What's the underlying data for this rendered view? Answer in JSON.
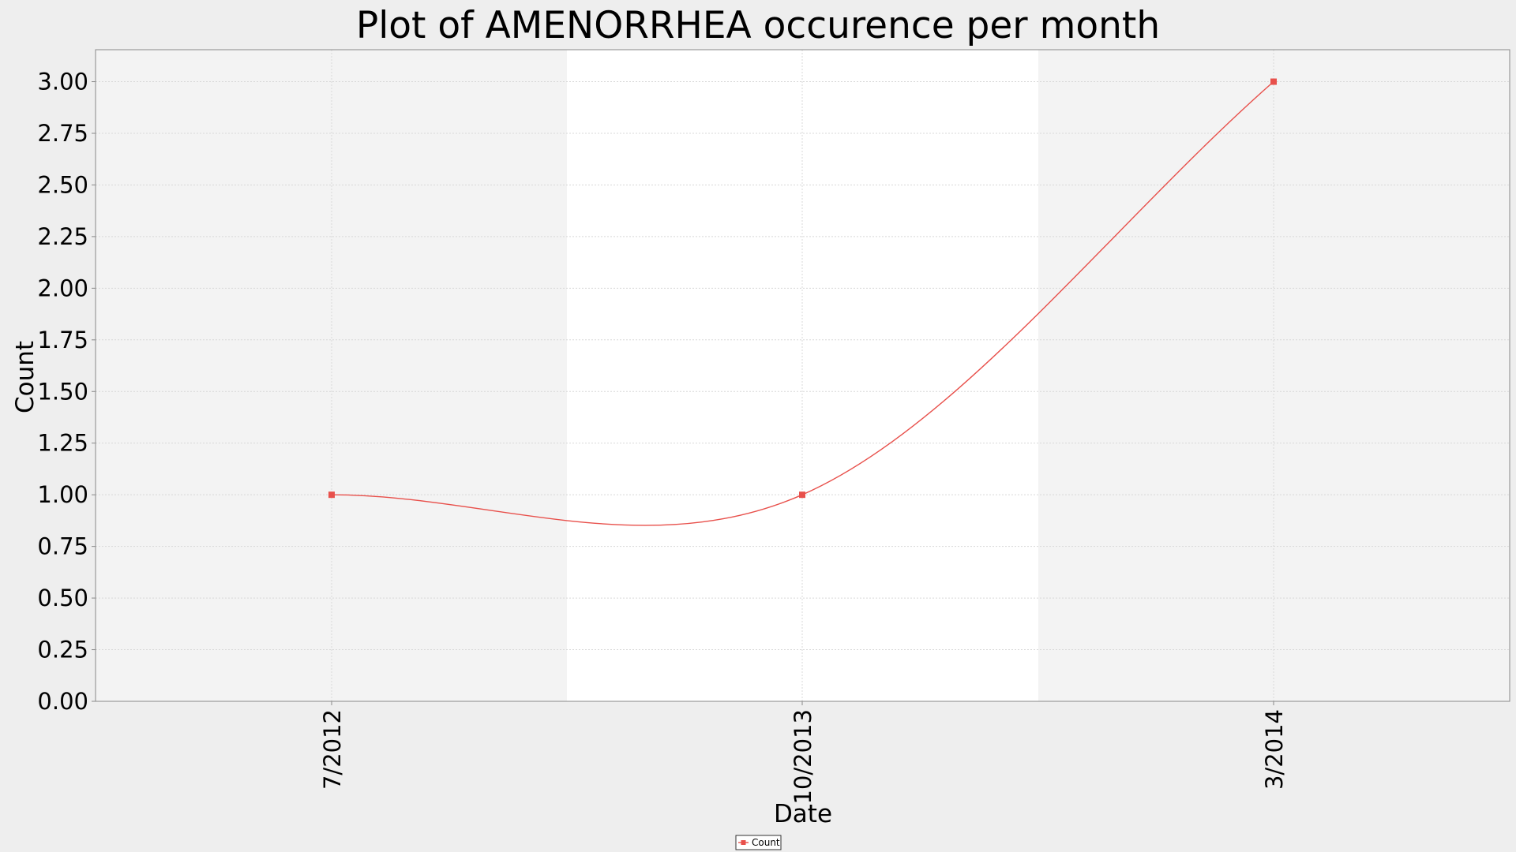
{
  "chart_data": {
    "type": "line",
    "title": "Plot of AMENORRHEA occurence per month",
    "xlabel": "Date",
    "ylabel": "Count",
    "ylim": [
      0,
      3.1548
    ],
    "yticks": [
      0,
      0.25,
      0.5,
      0.75,
      1.0,
      1.25,
      1.5,
      1.75,
      2.0,
      2.25,
      2.5,
      2.75,
      3.0
    ],
    "ytick_labels": [
      "0.00",
      "0.25",
      "0.50",
      "0.75",
      "1.00",
      "1.25",
      "1.50",
      "1.75",
      "2.00",
      "2.25",
      "2.50",
      "2.75",
      "3.00"
    ],
    "categories": [
      "7/2012",
      "10/2013",
      "3/2014"
    ],
    "series": [
      {
        "name": "Count",
        "color": "#e8504b",
        "values": [
          1,
          1,
          3
        ]
      }
    ],
    "grid": true,
    "legend": "bottom-center"
  }
}
